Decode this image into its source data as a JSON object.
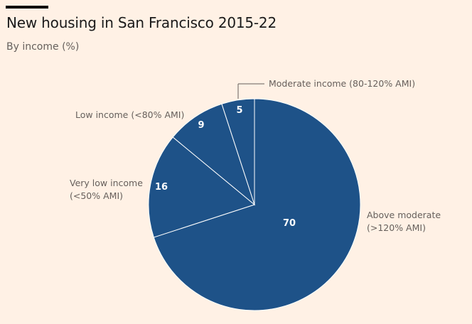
{
  "chart_data": {
    "type": "pie",
    "title": "New housing in San Francisco 2015-22",
    "subtitle": "By income (%)",
    "colors": {
      "slice": "#1e5288",
      "border": "#ffffff",
      "background": "#fff1e5"
    },
    "slices": [
      {
        "name": "Above moderate",
        "label_lines": [
          "Above moderate",
          "(>120% AMI)"
        ],
        "value": 70
      },
      {
        "name": "Very low income",
        "label_lines": [
          "Very low income",
          "(<50% AMI)"
        ],
        "value": 16
      },
      {
        "name": "Low income",
        "label_lines": [
          "Low income (<80% AMI)"
        ],
        "value": 9
      },
      {
        "name": "Moderate income",
        "label_lines": [
          "Moderate income (80-120% AMI)"
        ],
        "value": 5
      }
    ]
  }
}
